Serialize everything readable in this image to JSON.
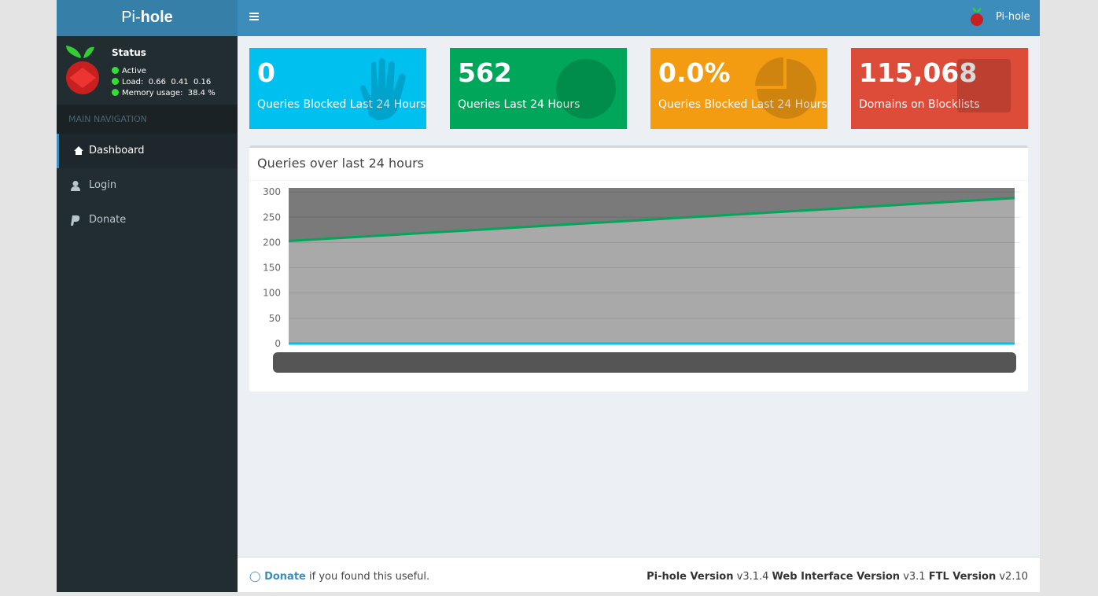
{
  "header": {
    "logo_light": "Pi-",
    "logo_bold": "hole",
    "brand": "Pi-hole"
  },
  "sidebar": {
    "status_title": "Status",
    "status": [
      "Active",
      "Load:  0.66  0.41  0.16",
      "Memory usage:  38.4 %"
    ],
    "nav_header": "MAIN NAVIGATION",
    "nav": [
      "Dashboard",
      "Login",
      "Donate"
    ]
  },
  "boxes": [
    {
      "value": "0",
      "label": "Queries Blocked Last 24 Hours",
      "color": "#00c0ef"
    },
    {
      "value": "562",
      "label": "Queries Last 24 Hours",
      "color": "#00a65a"
    },
    {
      "value": "0.0%",
      "label": "Queries Blocked Last 24 Hours",
      "color": "#f39c12"
    },
    {
      "value": "115,068",
      "label": "Domains on Blocklists",
      "color": "#dd4b39"
    }
  ],
  "chart_data": {
    "type": "line",
    "title": "Queries over last 24 hours",
    "categories": [
      null,
      null
    ],
    "series": [
      {
        "color": "#00a65a",
        "values": [
          203,
          288
        ]
      },
      {
        "color": "#00c0ef",
        "values": [
          0,
          0
        ]
      }
    ],
    "ylim": [
      0,
      308
    ],
    "yticks": [
      0,
      50,
      100,
      150,
      200,
      250,
      300
    ],
    "grid": true
  },
  "footer": {
    "donate": "Donate",
    "donate_rest": "if you found this useful.",
    "versions": [
      {
        "name": "Pi-hole Version",
        "value": "v3.1.4"
      },
      {
        "name": "Web Interface Version",
        "value": "v3.1"
      },
      {
        "name": "FTL Version",
        "value": "v2.10"
      }
    ]
  }
}
